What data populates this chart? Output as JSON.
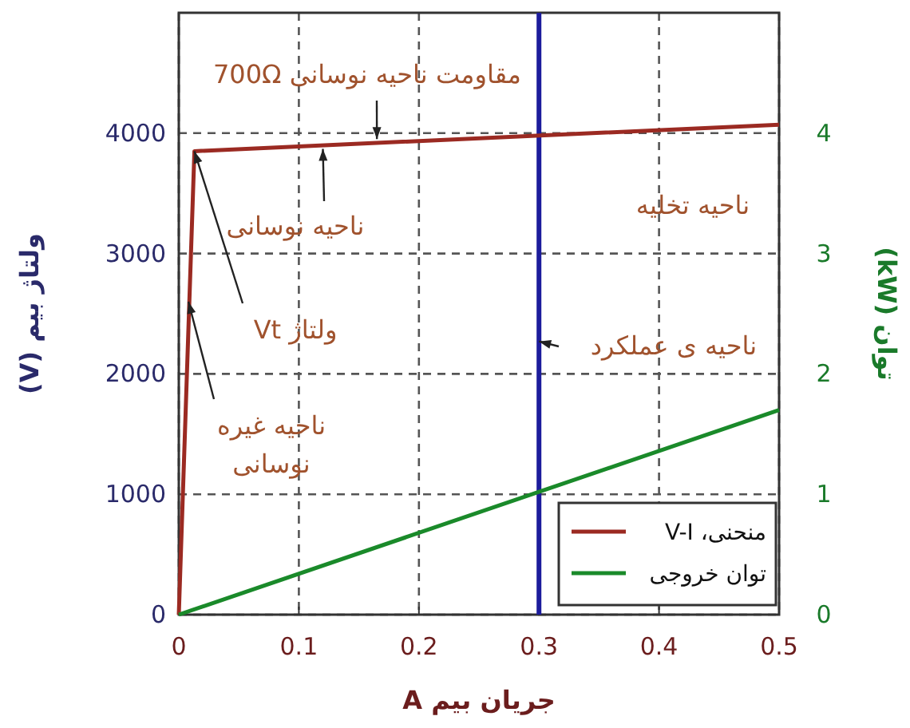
{
  "chart_data": {
    "type": "line",
    "xlabel": "جریان بیم A",
    "ylabel": "ولتاژ بیم (V)",
    "y2label": "توان (kW)",
    "xlim": [
      0,
      0.5
    ],
    "xticks": [
      0,
      0.1,
      0.2,
      0.3,
      0.4,
      0.5
    ],
    "ylim": [
      0,
      5000
    ],
    "yticks": [
      0,
      1000,
      2000,
      3000,
      4000
    ],
    "y2lim": [
      0,
      5
    ],
    "y2ticks": [
      0,
      1,
      2,
      3,
      4
    ],
    "grid": true,
    "legend": "bottom right",
    "marker": "none",
    "line_style": "solid",
    "series": [
      {
        "name": "منحنی، V-I",
        "color": "#9b2a22",
        "x": [
          0,
          0.013,
          0.5
        ],
        "values": [
          0,
          3850,
          4070
        ]
      },
      {
        "name": "توان خروجی",
        "color": "#1a8a2a",
        "axis": "y2",
        "x": [
          0,
          0.5
        ],
        "values": [
          0,
          1.7
        ]
      }
    ],
    "ref_lines": [
      {
        "axis": "x",
        "value": 0.3,
        "color": "#1c1c9c",
        "line_style": "solid"
      }
    ],
    "annotations": [
      {
        "text": "مقاومت ناحیه نوسانی 700Ω",
        "x": 0.165,
        "y": 3950
      },
      {
        "text": "ناحیه نوسانی",
        "x": 0.12,
        "y": 3870
      },
      "ناحیه تخلیه",
      {
        "text": "ناحیه ی عملکرد",
        "x": 0.3,
        "y": 2270
      },
      {
        "text": "ولتاژ Vt",
        "x": 0.013,
        "y": 3850
      },
      {
        "text": "ناحیه غیره\nنوسانی",
        "x": 0.008,
        "y": 2600
      }
    ]
  }
}
